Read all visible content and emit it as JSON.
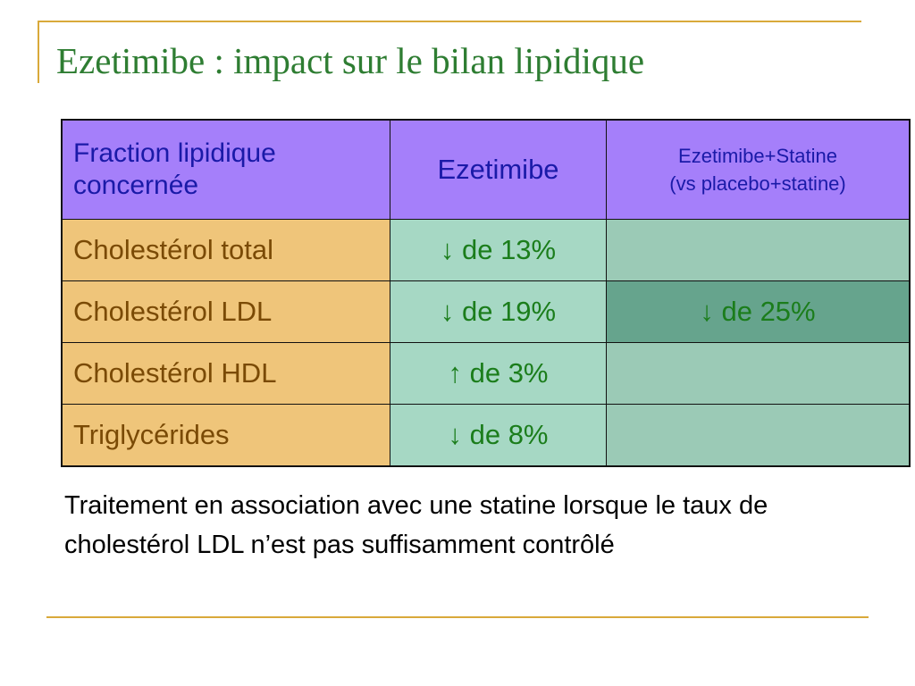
{
  "slide": {
    "title": "Ezetimibe : impact sur le bilan lipidique"
  },
  "table": {
    "headers": {
      "fraction": "Fraction lipidique concernée",
      "ezetimibe": "Ezetimibe",
      "combo_line1": "Ezetimibe+Statine",
      "combo_line2": "(vs placebo+statine)"
    },
    "rows": [
      {
        "label": "Cholestérol total",
        "ezetimibe": "↓ de 13%",
        "combo": ""
      },
      {
        "label": "Cholestérol LDL",
        "ezetimibe": "↓ de 19%",
        "combo": "↓ de 25%"
      },
      {
        "label": "Cholestérol HDL",
        "ezetimibe": "↑ de 3%",
        "combo": ""
      },
      {
        "label": "Triglycérides",
        "ezetimibe": "↓ de 8%",
        "combo": ""
      }
    ]
  },
  "caption": "Traitement en association avec une statine lorsque le taux de cholestérol LDL n’est pas suffisamment contrôlé",
  "colors": {
    "title": "#2e7d32",
    "header_bg": "#a57ffa",
    "header_text": "#1a1aa8",
    "label_bg": "#efc57a",
    "label_text": "#7a4a05",
    "value_bg": "#a6d8c4",
    "value_text": "#1b7d1b",
    "highlight_bg": "#66a48d",
    "rule": "#d9a93a"
  }
}
